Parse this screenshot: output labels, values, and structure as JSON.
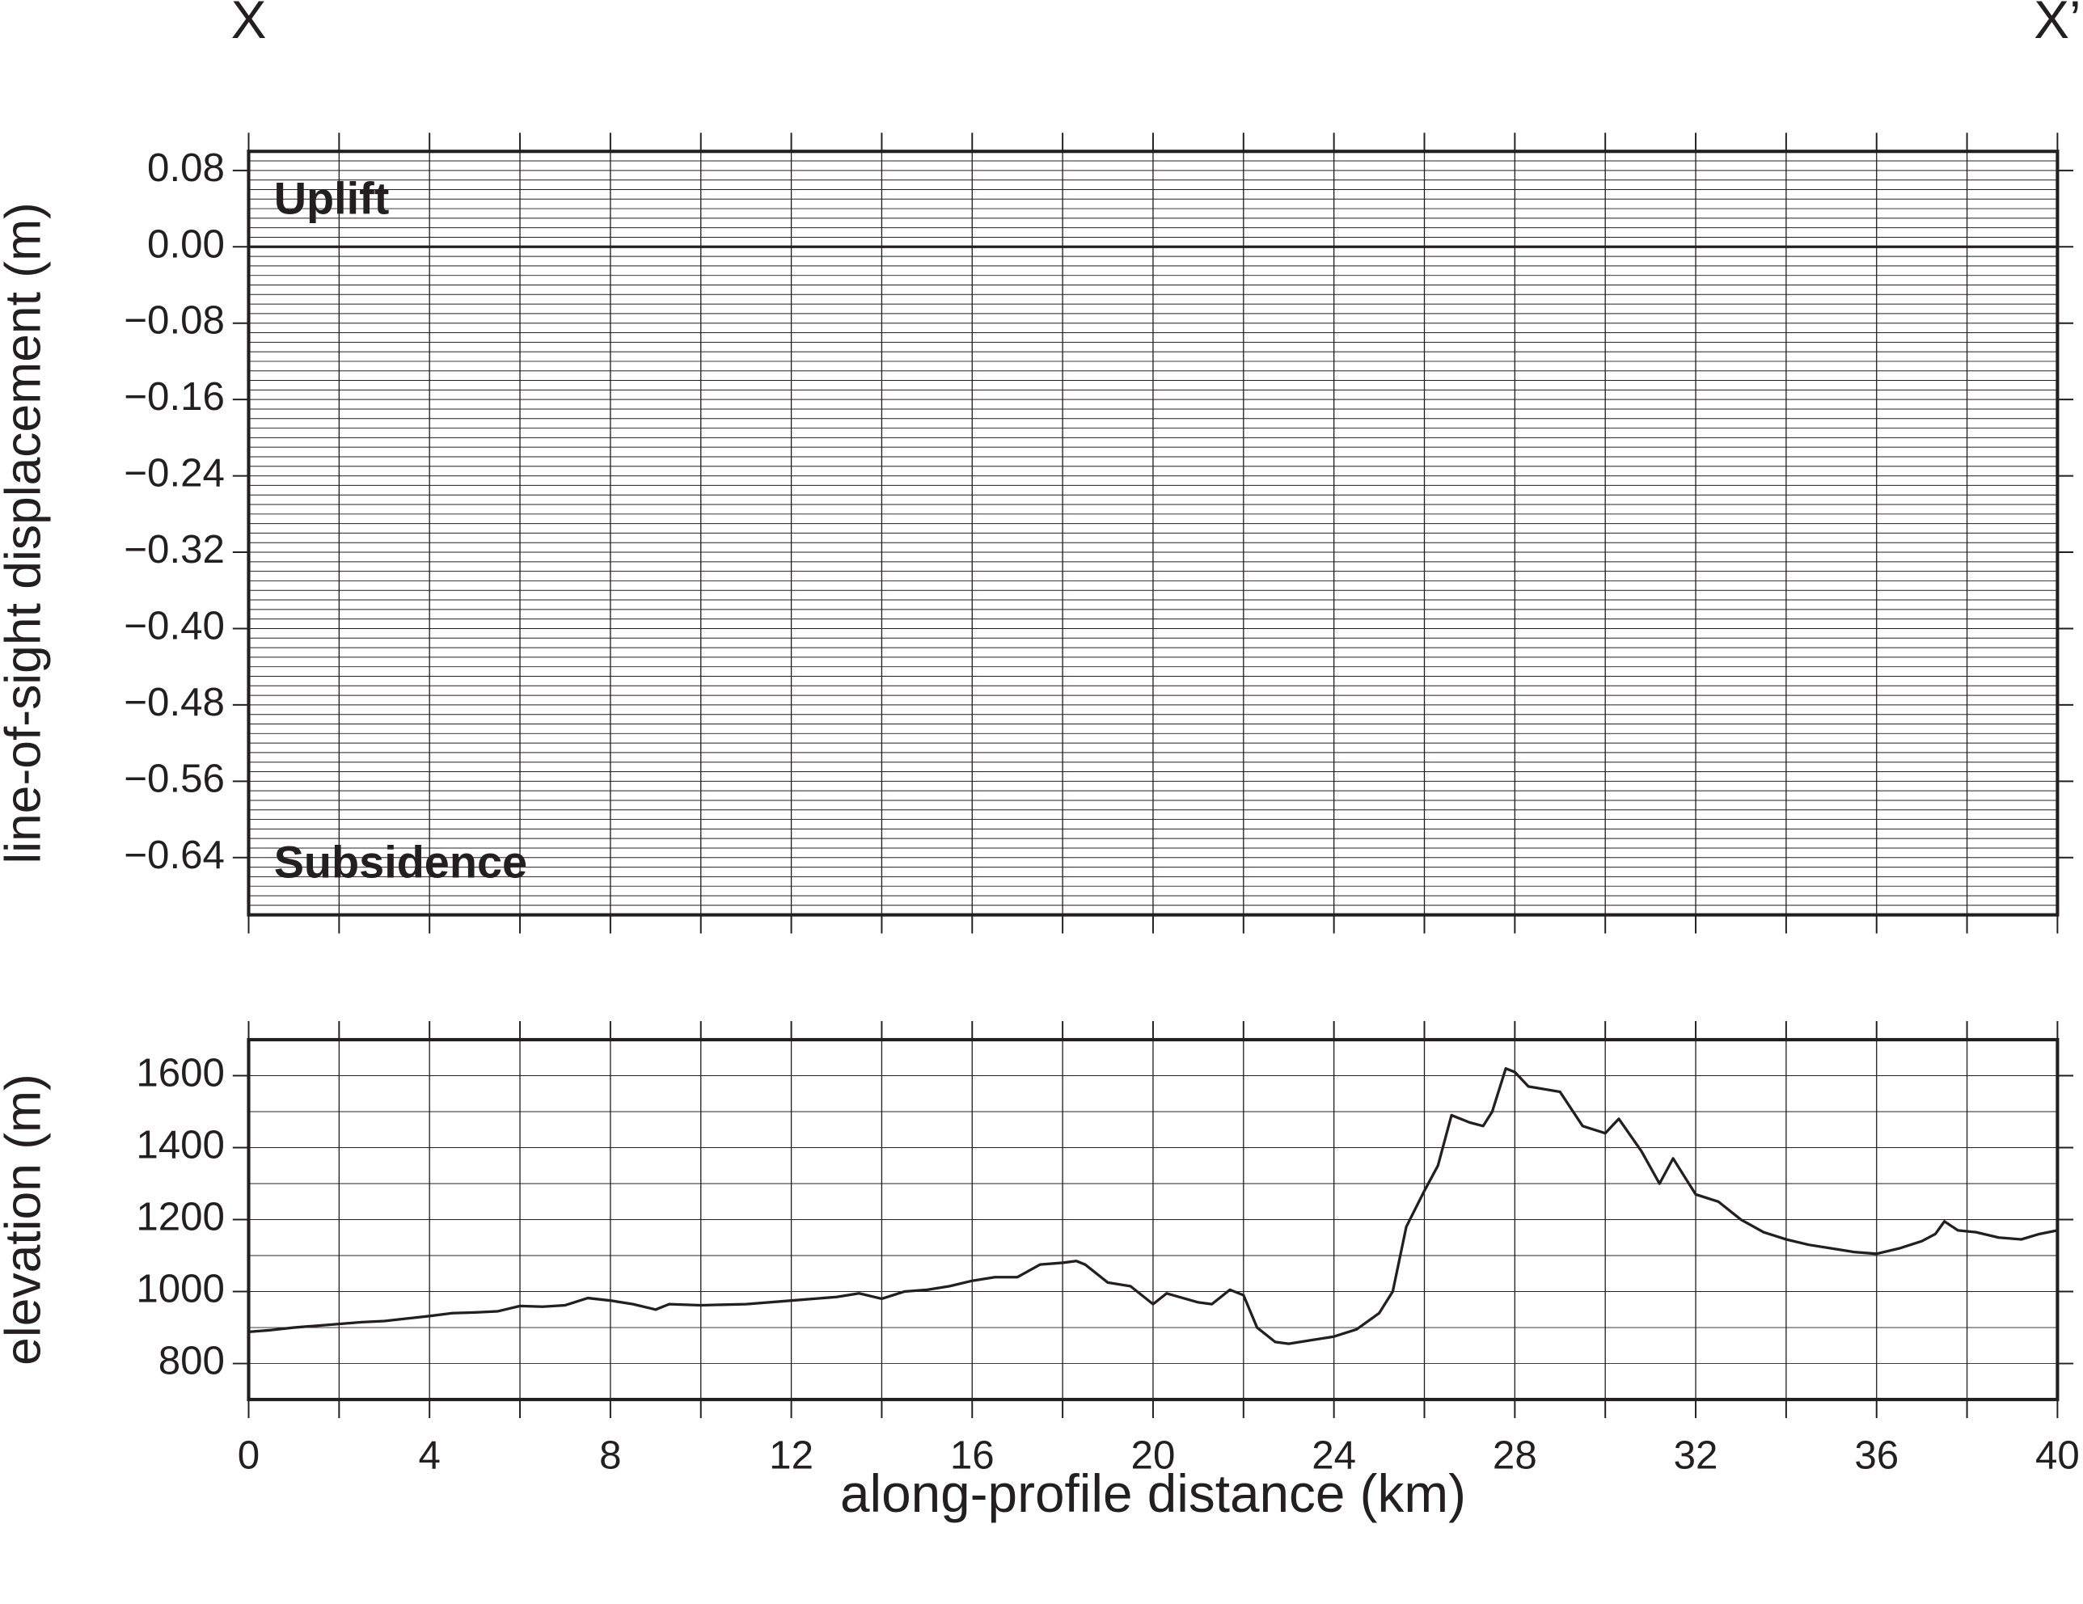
{
  "chart_data": [
    {
      "type": "line",
      "ylabel": "line-of-sight displacement (m)",
      "annotations": [
        "X",
        "X’",
        "Uplift",
        "Subsidence"
      ],
      "xlim": [
        0,
        40
      ],
      "ylim": [
        -0.7,
        0.1
      ],
      "yticks": [
        {
          "value": 0.08,
          "label": "0.08"
        },
        {
          "value": 0,
          "label": "0.00"
        },
        {
          "value": -0.08,
          "label": "−0.08"
        },
        {
          "value": -0.16,
          "label": "−0.16"
        },
        {
          "value": -0.24,
          "label": "−0.24"
        },
        {
          "value": -0.32,
          "label": "−0.32"
        },
        {
          "value": -0.4,
          "label": "−0.40"
        },
        {
          "value": -0.48,
          "label": "−0.48"
        },
        {
          "value": -0.56,
          "label": "−0.56"
        },
        {
          "value": -0.64,
          "label": "−0.64"
        }
      ],
      "xgrid": [
        0,
        2,
        4,
        6,
        8,
        10,
        12,
        14,
        16,
        18,
        20,
        22,
        24,
        26,
        28,
        30,
        32,
        34,
        36,
        38,
        40
      ],
      "ygrid": [
        0.1,
        0.09,
        0.08,
        0.07,
        0.06,
        0.05,
        0.04,
        0.03,
        0.02,
        0.01,
        0,
        -0.01,
        -0.02,
        -0.03,
        -0.04,
        -0.05,
        -0.06,
        -0.07,
        -0.08,
        -0.09,
        -0.1,
        -0.11,
        -0.12,
        -0.13,
        -0.14,
        -0.15,
        -0.16,
        -0.17,
        -0.18,
        -0.19,
        -0.2,
        -0.21,
        -0.22,
        -0.23,
        -0.24,
        -0.25,
        -0.26,
        -0.27,
        -0.28,
        -0.29,
        -0.3,
        -0.31,
        -0.32,
        -0.33,
        -0.34,
        -0.35,
        -0.36,
        -0.37,
        -0.38,
        -0.39,
        -0.4,
        -0.41,
        -0.42,
        -0.43,
        -0.44,
        -0.45,
        -0.46,
        -0.47,
        -0.48,
        -0.49,
        -0.5,
        -0.51,
        -0.52,
        -0.53,
        -0.54,
        -0.55,
        -0.56,
        -0.57,
        -0.58,
        -0.59,
        -0.6,
        -0.61,
        -0.62,
        -0.63,
        -0.64,
        -0.65,
        -0.66,
        -0.67,
        -0.68,
        -0.69,
        -0.7
      ],
      "zero_line": true,
      "grid": true
    },
    {
      "type": "line",
      "ylabel": "elevation (m)",
      "xlabel": "along-profile distance (km)",
      "color": "#231f20",
      "x": [
        0,
        0.5,
        1,
        1.5,
        2,
        2.5,
        3,
        3.5,
        4,
        4.5,
        5,
        5.5,
        6,
        6.5,
        7,
        7.5,
        8,
        8.5,
        9,
        9.3,
        10,
        11,
        12,
        13,
        13.5,
        14,
        14.5,
        15,
        15.5,
        16,
        16.5,
        17,
        17.5,
        18,
        18.3,
        18.5,
        19,
        19.5,
        20,
        20.3,
        21,
        21.3,
        21.7,
        22,
        22.3,
        22.7,
        23,
        23.5,
        24,
        24.5,
        25,
        25.3,
        25.6,
        26,
        26.3,
        26.6,
        27,
        27.3,
        27.5,
        27.8,
        28,
        28.3,
        29,
        29.5,
        30,
        30.3,
        30.8,
        31.2,
        31.5,
        31.8,
        32,
        32.5,
        33,
        33.5,
        34,
        34.5,
        35,
        35.5,
        36,
        36.5,
        37,
        37.3,
        37.5,
        37.8,
        38.2,
        38.7,
        39.2,
        39.6,
        40
      ],
      "values": [
        888,
        893,
        900,
        905,
        910,
        915,
        918,
        925,
        932,
        940,
        942,
        945,
        960,
        958,
        962,
        982,
        975,
        965,
        950,
        965,
        962,
        965,
        975,
        985,
        995,
        980,
        1000,
        1005,
        1015,
        1030,
        1040,
        1040,
        1075,
        1080,
        1085,
        1075,
        1025,
        1015,
        965,
        995,
        970,
        965,
        1005,
        990,
        900,
        860,
        855,
        865,
        875,
        895,
        940,
        1000,
        1180,
        1280,
        1350,
        1490,
        1470,
        1460,
        1500,
        1620,
        1610,
        1570,
        1555,
        1460,
        1440,
        1480,
        1390,
        1300,
        1370,
        1310,
        1270,
        1250,
        1200,
        1165,
        1145,
        1130,
        1120,
        1110,
        1105,
        1120,
        1140,
        1160,
        1195,
        1170,
        1165,
        1150,
        1145,
        1160,
        1170
      ],
      "xlim": [
        0,
        40
      ],
      "ylim": [
        700,
        1700
      ],
      "xticks": [
        0,
        4,
        8,
        12,
        16,
        20,
        24,
        28,
        32,
        36,
        40
      ],
      "yticks": [
        {
          "value": 800,
          "label": "800"
        },
        {
          "value": 1000,
          "label": "1000"
        },
        {
          "value": 1200,
          "label": "1200"
        },
        {
          "value": 1400,
          "label": "1400"
        },
        {
          "value": 1600,
          "label": "1600"
        }
      ],
      "xgrid": [
        0,
        2,
        4,
        6,
        8,
        10,
        12,
        14,
        16,
        18,
        20,
        22,
        24,
        26,
        28,
        30,
        32,
        34,
        36,
        38,
        40
      ],
      "ygrid": [
        700,
        800,
        900,
        1000,
        1100,
        1200,
        1300,
        1400,
        1500,
        1600,
        1700
      ],
      "grid": true
    }
  ]
}
